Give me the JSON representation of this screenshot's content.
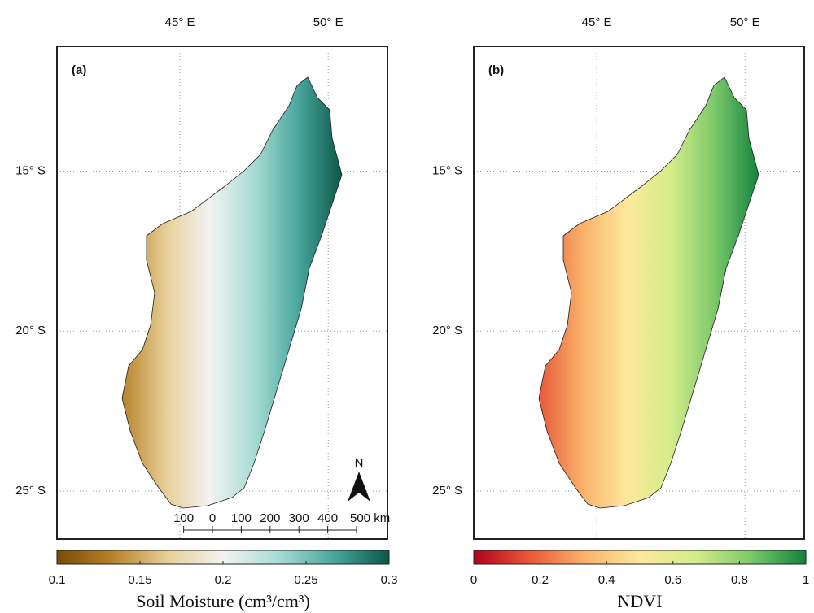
{
  "panels": [
    {
      "label": "(a)",
      "lonlim": [
        40.85,
        52.0
      ],
      "latlim": [
        -26.5,
        -11.1
      ],
      "lon_ticks": [
        {
          "value": 45,
          "label": "45° E"
        },
        {
          "value": 50,
          "label": "50° E"
        }
      ],
      "lat_ticks": [
        {
          "value": -15,
          "label": "15° S"
        },
        {
          "value": -20,
          "label": "20° S"
        },
        {
          "value": -25,
          "label": "25° S"
        }
      ],
      "colorbar": {
        "label": "Soil Moisture (cm³/cm³)",
        "lim": [
          0.1,
          0.3
        ],
        "ticks": [
          0.1,
          0.15,
          0.2,
          0.25,
          0.3
        ],
        "colors": [
          "#7a4a06",
          "#b8822a",
          "#e7cf98",
          "#f3f3f1",
          "#a8dcd4",
          "#4aa79e",
          "#0b5748"
        ]
      },
      "scale_bar": {
        "ticks": [
          {
            "value": -100,
            "label": "100"
          },
          0,
          100,
          200,
          300,
          400,
          {
            "value": 500,
            "label": "500 km"
          }
        ]
      },
      "north_label": "N"
    },
    {
      "label": "(b)",
      "lonlim": [
        40.85,
        52.0
      ],
      "latlim": [
        -26.5,
        -11.1
      ],
      "lon_ticks": [
        {
          "value": 45,
          "label": "45° E"
        },
        {
          "value": 50,
          "label": "50° E"
        }
      ],
      "lat_ticks": [
        {
          "value": -15,
          "label": "15° S"
        },
        {
          "value": -20,
          "label": "20° S"
        },
        {
          "value": -25,
          "label": "25° S"
        }
      ],
      "colorbar": {
        "label": "NDVI",
        "lim": [
          0,
          1
        ],
        "ticks": [
          0,
          0.2,
          0.4,
          0.6,
          0.8,
          1
        ],
        "colors": [
          "#b3001c",
          "#e8593a",
          "#f9b26a",
          "#fde99c",
          "#d5ec8a",
          "#7cc96a",
          "#13823e"
        ]
      }
    }
  ]
}
